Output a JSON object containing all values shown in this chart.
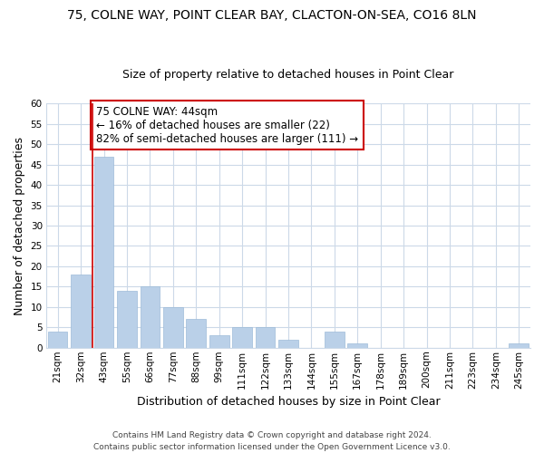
{
  "title": "75, COLNE WAY, POINT CLEAR BAY, CLACTON-ON-SEA, CO16 8LN",
  "subtitle": "Size of property relative to detached houses in Point Clear",
  "xlabel": "Distribution of detached houses by size in Point Clear",
  "ylabel": "Number of detached properties",
  "categories": [
    "21sqm",
    "32sqm",
    "43sqm",
    "55sqm",
    "66sqm",
    "77sqm",
    "88sqm",
    "99sqm",
    "111sqm",
    "122sqm",
    "133sqm",
    "144sqm",
    "155sqm",
    "167sqm",
    "178sqm",
    "189sqm",
    "200sqm",
    "211sqm",
    "223sqm",
    "234sqm",
    "245sqm"
  ],
  "values": [
    4,
    18,
    47,
    14,
    15,
    10,
    7,
    3,
    5,
    5,
    2,
    0,
    4,
    1,
    0,
    0,
    0,
    0,
    0,
    0,
    1
  ],
  "bar_color": "#bad0e8",
  "bar_edge_color": "#9dbbd8",
  "vline_x": 1.5,
  "vline_color": "#cc0000",
  "annotation_text": "75 COLNE WAY: 44sqm\n← 16% of detached houses are smaller (22)\n82% of semi-detached houses are larger (111) →",
  "annotation_box_color": "#ffffff",
  "annotation_box_edge_color": "#cc0000",
  "ylim": [
    0,
    60
  ],
  "yticks": [
    0,
    5,
    10,
    15,
    20,
    25,
    30,
    35,
    40,
    45,
    50,
    55,
    60
  ],
  "footer_text": "Contains HM Land Registry data © Crown copyright and database right 2024.\nContains public sector information licensed under the Open Government Licence v3.0.",
  "background_color": "#ffffff",
  "grid_color": "#ccd9e8",
  "title_fontsize": 10,
  "subtitle_fontsize": 9,
  "axis_label_fontsize": 9,
  "tick_fontsize": 7.5,
  "annotation_fontsize": 8.5,
  "footer_fontsize": 6.5
}
